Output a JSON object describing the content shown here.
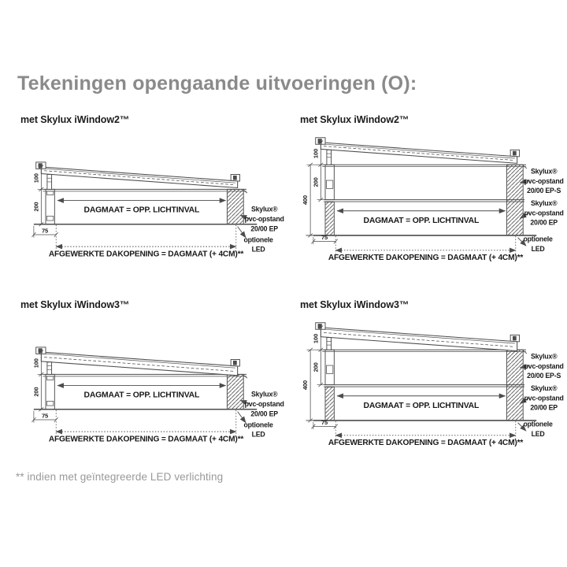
{
  "title": "Tekeningen opengaande uitvoeringen (O):",
  "footnote": "** indien met geïntegreerde LED verlichting",
  "colors": {
    "line": "#4c4c4c",
    "text": "#191919",
    "title": "#8a8a8a",
    "footnote": "#999999"
  },
  "labels": {
    "dagmaat": "DAGMAAT = OPP. LICHTINVAL",
    "dakopening": "AFGEWERKTE DAKOPENING = DAGMAAT (+ 4CM)**",
    "led_line1": "optionele",
    "led_line2": "LED",
    "dim_100": "100",
    "dim_200": "200",
    "dim_400": "400",
    "dim_75": "75",
    "callout_ep": [
      "Skylux®",
      "pvc-opstand",
      "20/00 EP"
    ],
    "callout_eps": [
      "Skylux®",
      "pvc-opstand",
      "20/00 EP-S"
    ]
  },
  "drawings": [
    {
      "heading": "met Skylux iWindow2™",
      "model": "iWindow2",
      "upstand": "20/00 EP"
    },
    {
      "heading": "met Skylux iWindow2™",
      "model": "iWindow2",
      "upstand": "20/00 EP + 20/00 EP-S"
    },
    {
      "heading": "met Skylux iWindow3™",
      "model": "iWindow3",
      "upstand": "20/00 EP"
    },
    {
      "heading": "met Skylux iWindow3™",
      "model": "iWindow3",
      "upstand": "20/00 EP + 20/00 EP-S"
    }
  ]
}
